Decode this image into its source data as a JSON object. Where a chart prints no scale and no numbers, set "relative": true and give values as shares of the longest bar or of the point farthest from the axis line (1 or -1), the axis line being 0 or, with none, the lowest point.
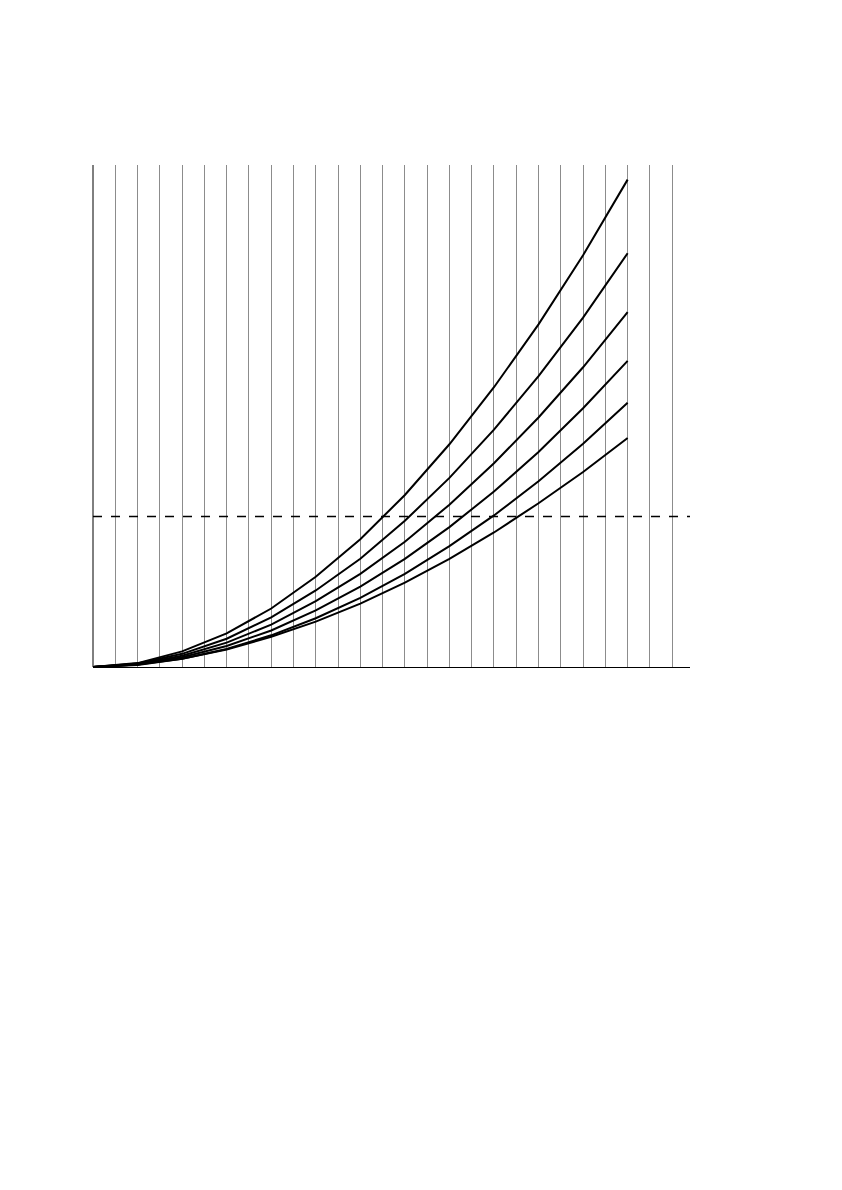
{
  "chart_data": {
    "type": "line",
    "relative": true,
    "grid": "x",
    "marker": "none",
    "line_style": "solid",
    "categories": [
      null,
      null,
      null,
      null,
      null,
      null,
      null,
      null,
      null,
      null,
      null,
      null,
      null,
      null
    ],
    "series": [
      {
        "color": "#000000",
        "values": [
          0,
          0.008,
          0.032,
          0.069,
          0.12,
          0.185,
          0.262,
          0.353,
          0.457,
          0.574,
          0.703,
          0.845,
          1.0,
          null
        ]
      },
      {
        "color": "#000000",
        "values": [
          0,
          0.007,
          0.027,
          0.058,
          0.102,
          0.157,
          0.222,
          0.3,
          0.388,
          0.487,
          0.597,
          0.717,
          0.849,
          null
        ]
      },
      {
        "color": "#000000",
        "values": [
          0,
          0.006,
          0.023,
          0.05,
          0.087,
          0.135,
          0.191,
          0.257,
          0.333,
          0.418,
          0.512,
          0.615,
          0.728,
          null
        ]
      },
      {
        "color": "#000000",
        "values": [
          0,
          0.005,
          0.02,
          0.043,
          0.075,
          0.116,
          0.165,
          0.222,
          0.287,
          0.36,
          0.441,
          0.531,
          0.628,
          null
        ]
      },
      {
        "color": "#000000",
        "values": [
          0,
          0.004,
          0.017,
          0.037,
          0.065,
          0.1,
          0.142,
          0.191,
          0.248,
          0.311,
          0.381,
          0.458,
          0.542,
          null
        ]
      },
      {
        "color": "#000000",
        "values": [
          0,
          0.005,
          0.017,
          0.036,
          0.062,
          0.093,
          0.13,
          0.173,
          0.222,
          0.276,
          0.336,
          0.4,
          0.47,
          null
        ]
      }
    ],
    "ref_lines": [
      {
        "axis": "y",
        "value": 0.309,
        "color": "#000000",
        "line_style": "dashed"
      }
    ]
  }
}
